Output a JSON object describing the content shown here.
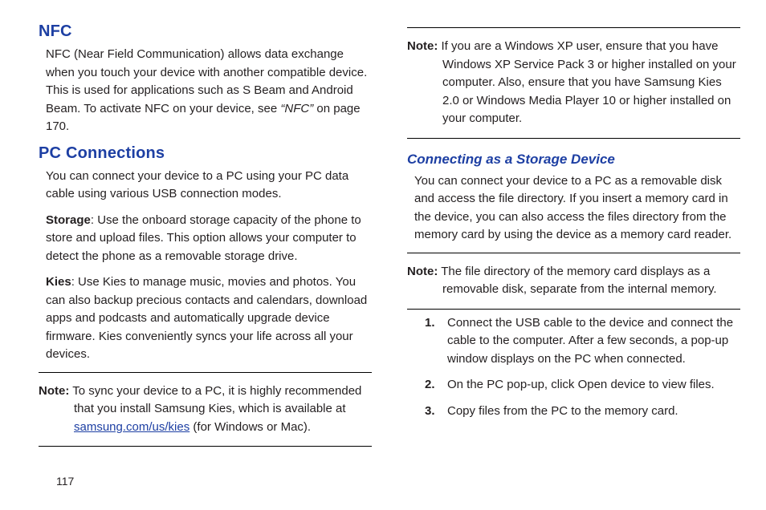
{
  "left": {
    "nfc": {
      "heading": "NFC",
      "body": "NFC (Near Field Communication) allows data exchange when you touch your device with another compatible device. This is used for applications such as S Beam and Android Beam. To activate NFC on your device, see ",
      "ref": "“NFC”",
      "ref_tail": " on page 170."
    },
    "pc": {
      "heading": "PC Connections",
      "intro": "You can connect your device to a PC using your PC data cable using various USB connection modes.",
      "storage_label": "Storage",
      "storage_text": ": Use the onboard storage capacity of the phone to store and upload files. This option allows your computer to detect the phone as a removable storage drive.",
      "kies_label": "Kies",
      "kies_text": ": Use Kies to manage music, movies and photos. You can also backup precious contacts and calendars, download apps and podcasts and automatically upgrade device firmware. Kies conveniently syncs your life across all your devices.",
      "note_label": "Note:",
      "note_text1": " To sync your device to a PC, it is highly recommended that you install Samsung Kies, which is available at ",
      "note_link": "samsung.com/us/kies",
      "note_text2": " (for Windows or Mac)."
    }
  },
  "right": {
    "note1": {
      "label": "Note:",
      "text": " If you are a Windows XP user, ensure that you have Windows XP Service Pack 3 or higher installed on your computer. Also, ensure that you have Samsung Kies 2.0 or Windows Media Player 10 or higher installed on your computer."
    },
    "connecting": {
      "heading": "Connecting as a Storage Device",
      "intro": "You can connect your device to a PC as a removable disk and access the file directory. If you insert a memory card in the device, you can also access the files directory from the memory card by using the device as a memory card reader.",
      "note_label": "Note:",
      "note_text": " The file directory of the memory card displays as a removable disk, separate from the internal memory.",
      "steps": {
        "n1": "1.",
        "t1": "Connect the USB cable to the device and connect the cable to the computer. After a few seconds, a pop-up window displays on the PC when connected.",
        "n2": "2.",
        "t2a": "On the PC pop-up, click ",
        "t2b": "Open device to view files",
        "t2c": ".",
        "n3": "3.",
        "t3": "Copy files from the PC to the memory card."
      }
    }
  },
  "page_number": "117"
}
